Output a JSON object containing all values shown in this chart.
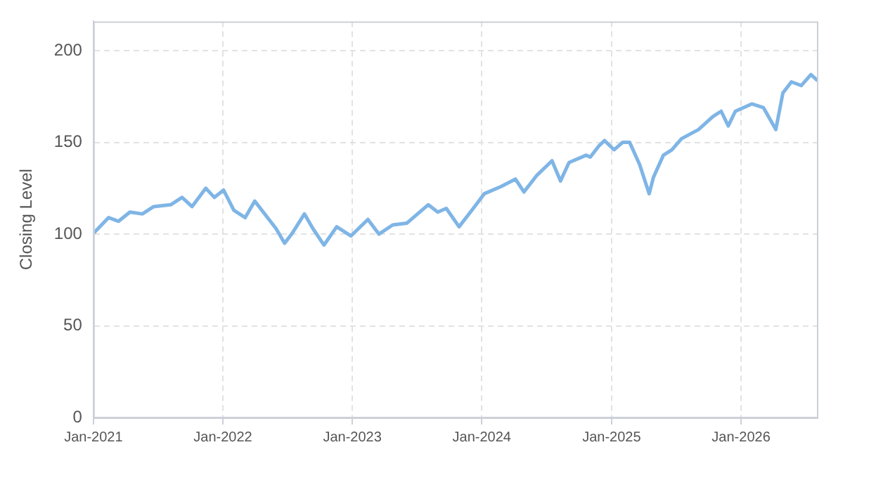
{
  "chart_data": {
    "type": "line",
    "ylabel": "Closing Level",
    "x": [
      "2021-01-04",
      "2021-02-13",
      "2021-03-13",
      "2021-04-14",
      "2021-05-19",
      "2021-06-20",
      "2021-08-07",
      "2021-09-08",
      "2021-10-06",
      "2021-11-14",
      "2021-12-08",
      "2022-01-03",
      "2022-02-01",
      "2022-03-05",
      "2022-04-01",
      "2022-05-11",
      "2022-05-31",
      "2022-06-24",
      "2022-07-14",
      "2022-08-19",
      "2022-09-12",
      "2022-10-13",
      "2022-11-18",
      "2022-12-28",
      "2023-02-14",
      "2023-03-17",
      "2023-04-25",
      "2023-06-04",
      "2023-08-03",
      "2023-08-30",
      "2023-09-23",
      "2023-10-29",
      "2023-12-08",
      "2024-01-08",
      "2024-02-25",
      "2024-04-05",
      "2024-04-29",
      "2024-06-04",
      "2024-07-17",
      "2024-08-10",
      "2024-09-03",
      "2024-10-21",
      "2024-11-02",
      "2024-11-26",
      "2024-12-12",
      "2025-01-08",
      "2025-02-01",
      "2025-02-21",
      "2025-03-21",
      "2025-04-17",
      "2025-04-29",
      "2025-05-27",
      "2025-06-20",
      "2025-07-17",
      "2025-09-03",
      "2025-10-13",
      "2025-11-06",
      "2025-11-26",
      "2025-12-16",
      "2026-02-01",
      "2026-03-05",
      "2026-04-09",
      "2026-04-29",
      "2026-05-23",
      "2026-06-20",
      "2026-07-17",
      "2026-08-03"
    ],
    "series": [
      {
        "color": "#7fb5e6",
        "values": [
          101,
          109,
          107,
          112,
          111,
          115,
          116,
          120,
          115,
          125,
          120,
          124,
          113,
          109,
          118,
          108,
          103,
          95,
          100,
          111,
          103,
          94,
          104,
          99,
          108,
          100,
          105,
          106,
          116,
          112,
          114,
          104,
          114,
          122,
          126,
          130,
          123,
          132,
          140,
          129,
          139,
          143,
          142,
          148,
          151,
          146,
          150,
          150,
          138,
          122,
          131,
          143,
          146,
          152,
          157,
          164,
          167,
          159,
          167,
          171,
          169,
          157,
          177,
          183,
          181,
          187,
          184
        ]
      }
    ],
    "xlim": [
      "2021-01-01",
      "2026-08-03"
    ],
    "xticks": [
      {
        "value": "2021-01-01",
        "label": "Jan-2021"
      },
      {
        "value": "2022-01-01",
        "label": "Jan-2022"
      },
      {
        "value": "2023-01-01",
        "label": "Jan-2023"
      },
      {
        "value": "2024-01-01",
        "label": "Jan-2024"
      },
      {
        "value": "2025-01-01",
        "label": "Jan-2025"
      },
      {
        "value": "2026-01-01",
        "label": "Jan-2026"
      }
    ],
    "ylim": [
      0,
      216
    ],
    "yticks": [
      0,
      50,
      100,
      150,
      200
    ],
    "grid": true,
    "legend": false,
    "marker": "none",
    "line_style": "solid"
  }
}
